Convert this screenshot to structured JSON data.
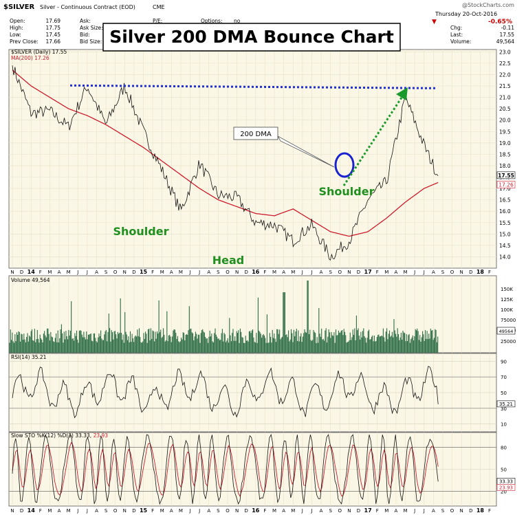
{
  "header": {
    "symbol": "$SILVER",
    "description": "Silver - Continuous Contract (EOD)",
    "exchange": "CME",
    "source": "@StockCharts.com",
    "date": "Thursday  20-Oct-2016",
    "change_pct": "-0.65%",
    "stats_left": [
      {
        "label": "Open:",
        "value": "17.69"
      },
      {
        "label": "High:",
        "value": "17.75"
      },
      {
        "label": "Low:",
        "value": "17.45"
      },
      {
        "label": "Prev Close:",
        "value": "17.66"
      }
    ],
    "stats_mid": [
      {
        "label": "Ask:",
        "value": ""
      },
      {
        "label": "Ask Size:",
        "value": ""
      },
      {
        "label": "Bid:",
        "value": ""
      },
      {
        "label": "Bid Size:",
        "value": ""
      }
    ],
    "stats_mid2": [
      {
        "label": "P/E:",
        "value": ""
      },
      {
        "label": "Options:",
        "value": "no"
      }
    ],
    "stats_right": [
      {
        "label": "Chg:",
        "value": "-0.11"
      },
      {
        "label": "Last:",
        "value": "17.55"
      },
      {
        "label": "Volume:",
        "value": "49,564"
      }
    ]
  },
  "title_box": "Silver 200 DMA Bounce Chart",
  "annotations": {
    "dma_callout": "200 DMA",
    "shoulder_left": "Shoulder",
    "head": "Head",
    "shoulder_right": "Shoulder"
  },
  "colors": {
    "panel_bg": "#fbf7e6",
    "price_line": "#111111",
    "ma_line": "#cc1b2b",
    "volume_bars": "#2a6b44",
    "neckline": "#1f2fd6",
    "circle": "#1a22d0",
    "arrow": "#1a9a2a",
    "annotation_text": "#1f8f1f"
  },
  "chart_data": [
    {
      "type": "line",
      "panel": "price",
      "legend": [
        "$SILVER (Daily) 17.55",
        "MA(200) 17.26"
      ],
      "ylim": [
        13.5,
        23.1
      ],
      "yticks": [
        14.0,
        14.5,
        15.0,
        15.5,
        16.0,
        16.5,
        17.0,
        17.5,
        18.0,
        18.5,
        19.0,
        19.5,
        20.0,
        20.5,
        21.0,
        21.5,
        22.0,
        22.5,
        23.0
      ],
      "last_labels": [
        "17.55",
        "17.26"
      ],
      "x_ticks": [
        "N",
        "D",
        "14",
        "F",
        "M",
        "A",
        "M",
        "J",
        "J",
        "A",
        "S",
        "O",
        "N",
        "D",
        "15",
        "F",
        "M",
        "A",
        "M",
        "J",
        "J",
        "A",
        "S",
        "O",
        "N",
        "D",
        "16",
        "F",
        "M",
        "A",
        "M",
        "J",
        "J",
        "A",
        "S",
        "O",
        "N",
        "D",
        "17",
        "F",
        "M",
        "A",
        "M",
        "J",
        "J",
        "A",
        "S",
        "O",
        "N",
        "D",
        "18",
        "F"
      ],
      "series": [
        {
          "name": "$SILVER",
          "x": [
            0,
            2,
            4,
            6,
            8,
            10,
            12,
            14,
            16,
            18,
            20,
            22,
            24,
            26,
            28,
            30,
            32,
            34,
            36,
            38,
            40,
            42,
            44,
            45.5
          ],
          "y": [
            22.4,
            20.3,
            20.4,
            19.7,
            21.5,
            19.8,
            21.5,
            19.5,
            17.8,
            16.0,
            18.1,
            16.7,
            16.6,
            15.5,
            15.4,
            14.7,
            15.4,
            14.0,
            14.7,
            16.5,
            17.3,
            21.0,
            18.9,
            17.55
          ]
        },
        {
          "name": "MA(200)",
          "x": [
            0,
            2,
            4,
            6,
            8,
            10,
            12,
            14,
            16,
            18,
            20,
            22,
            24,
            26,
            28,
            30,
            32,
            34,
            36,
            38,
            40,
            42,
            44,
            45.5
          ],
          "y": [
            22.2,
            21.5,
            21.0,
            20.5,
            20.2,
            19.8,
            19.3,
            18.8,
            18.2,
            17.6,
            17.0,
            16.5,
            16.2,
            15.9,
            15.8,
            16.1,
            15.6,
            15.1,
            14.9,
            15.1,
            15.7,
            16.4,
            17.0,
            17.26
          ]
        }
      ],
      "neckline": 21.4
    },
    {
      "type": "bar",
      "panel": "volume",
      "legend": [
        "Volume 49,564"
      ],
      "yticks": [
        "25000",
        "50000",
        "75000",
        "100K",
        "125K",
        "150K"
      ],
      "last_label": "49564"
    },
    {
      "type": "line",
      "panel": "rsi",
      "legend": [
        "RSI(14) 35.21"
      ],
      "ylim": [
        0,
        100
      ],
      "yticks": [
        10,
        30,
        50,
        70,
        90
      ],
      "last_label": "35.21"
    },
    {
      "type": "line",
      "panel": "stochastic",
      "legend": [
        "Slow STO %K(12) %D(3) 33.33, 23.93"
      ],
      "legend_parts": {
        "main": "Slow STO %K(12) %D(3) 33.33,",
        "d": "23.93"
      },
      "ylim": [
        0,
        100
      ],
      "yticks": [
        20,
        50,
        80
      ],
      "last_labels": [
        "33.33",
        "23.93"
      ]
    }
  ]
}
